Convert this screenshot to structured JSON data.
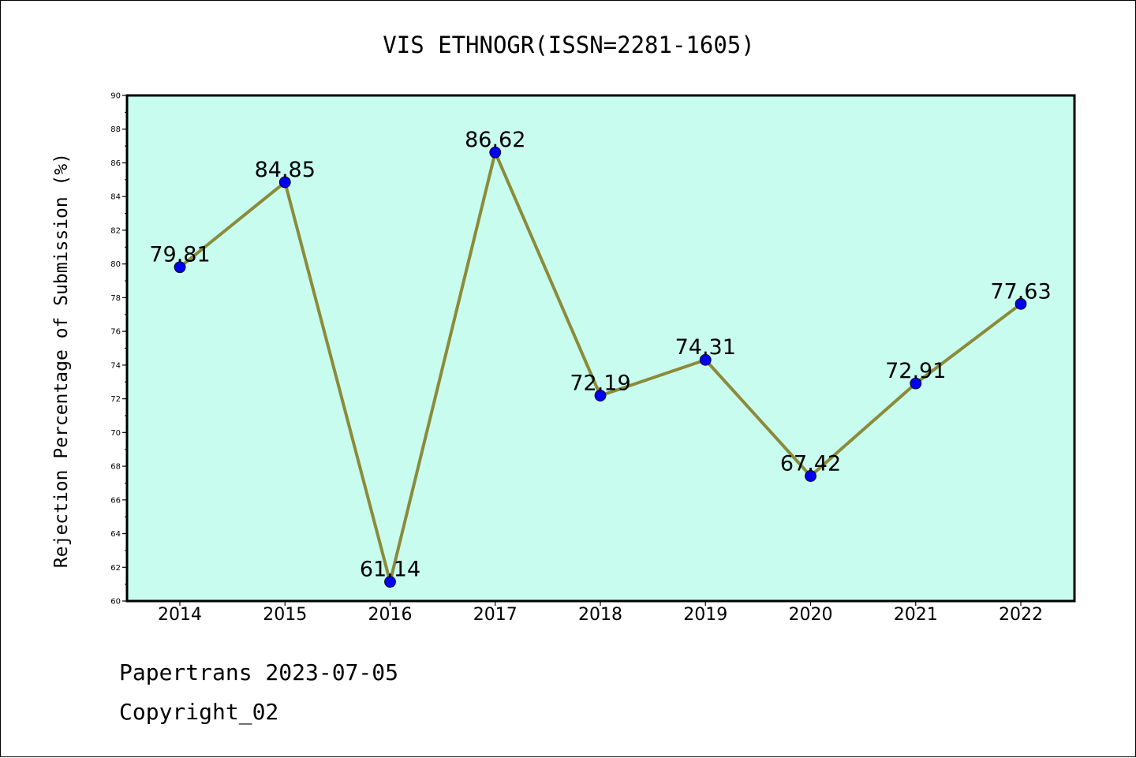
{
  "chart_data": {
    "type": "line",
    "title": "VIS ETHNOGR(ISSN=2281-1605)",
    "xlabel": "",
    "ylabel": "Rejection Percentage of Submission (%)",
    "categories": [
      "2014",
      "2015",
      "2016",
      "2017",
      "2018",
      "2019",
      "2020",
      "2021",
      "2022"
    ],
    "series": [
      {
        "values": [
          79.81,
          84.85,
          61.14,
          86.62,
          72.19,
          74.31,
          67.42,
          72.91,
          77.63
        ],
        "labels": [
          "79.81",
          "84.85",
          "61.14",
          "86.62",
          "72.19",
          "74.31",
          "67.42",
          "72.91",
          "77.63"
        ]
      }
    ],
    "ylim": [
      60,
      90
    ],
    "yticks": [
      "60",
      "62",
      "64",
      "66",
      "68",
      "70",
      "72",
      "74",
      "76",
      "78",
      "80",
      "82",
      "84",
      "86",
      "88",
      "90"
    ],
    "grid": false,
    "colors": {
      "plot_background": "#c8fcee",
      "line": "#8b8b3a",
      "marker": "#0000ee"
    }
  },
  "footer": {
    "line1": "Papertrans 2023-07-05",
    "line2": "Copyright_02"
  }
}
